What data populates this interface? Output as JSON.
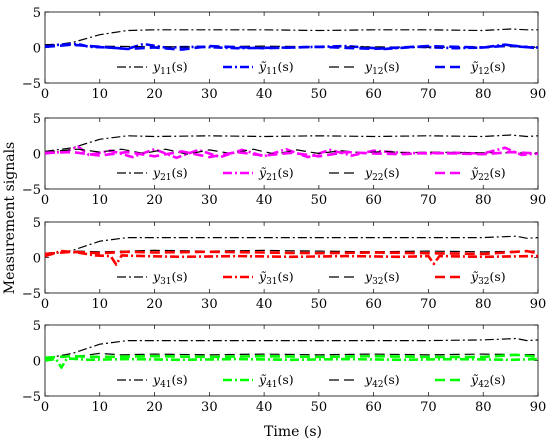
{
  "xlabel": "Time (s)",
  "ylabel": "Measurement signals",
  "chart_data": [
    {
      "type": "line",
      "xlim": [
        0,
        90
      ],
      "ylim": [
        -5,
        5
      ],
      "xticks": [
        "0",
        "10",
        "20",
        "30",
        "40",
        "50",
        "60",
        "70",
        "80",
        "90"
      ],
      "yticks": [
        "5",
        "0",
        "−5"
      ],
      "legend_position": "bottom",
      "series": [
        {
          "name": "y11(s)",
          "label_base": "y",
          "label_sub": "11",
          "label_suffix": "(s)",
          "tilde": false,
          "color": "#000000",
          "style": "dashdot",
          "width": 1.2,
          "x": [
            0,
            5,
            10,
            15,
            20,
            30,
            40,
            50,
            60,
            70,
            80,
            85,
            88,
            90
          ],
          "y": [
            0.2,
            0.7,
            1.8,
            2.4,
            2.5,
            2.5,
            2.5,
            2.4,
            2.5,
            2.5,
            2.4,
            2.6,
            2.5,
            2.5
          ]
        },
        {
          "name": "ỹ11(s)",
          "label_base": "y",
          "label_sub": "11",
          "label_suffix": "(s)",
          "tilde": true,
          "color": "#0000ff",
          "style": "dashdot",
          "width": 2.6,
          "x": [
            0,
            3,
            6,
            8,
            12,
            15,
            18,
            22,
            28,
            35,
            45,
            55,
            62,
            68,
            75,
            80,
            84,
            87,
            90
          ],
          "y": [
            0.3,
            0.4,
            0.5,
            0.1,
            0.0,
            -0.2,
            0.5,
            0.0,
            0.1,
            -0.1,
            0.0,
            0.2,
            -0.2,
            0.1,
            -0.1,
            0.0,
            0.4,
            0.1,
            0.0
          ]
        },
        {
          "name": "y12(s)",
          "label_base": "y",
          "label_sub": "12",
          "label_suffix": "(s)",
          "tilde": false,
          "color": "#000000",
          "style": "dashed",
          "width": 1.2,
          "x": [
            0,
            5,
            10,
            20,
            30,
            40,
            50,
            60,
            70,
            80,
            90
          ],
          "y": [
            0.4,
            0.3,
            0.2,
            0.1,
            0.1,
            0.2,
            0.1,
            0.1,
            0.0,
            0.1,
            0.1
          ]
        },
        {
          "name": "ỹ12(s)",
          "label_base": "y",
          "label_sub": "12",
          "label_suffix": "(s)",
          "tilde": true,
          "color": "#0000ff",
          "style": "dashed",
          "width": 2.6,
          "x": [
            0,
            5,
            10,
            15,
            20,
            25,
            30,
            40,
            50,
            60,
            70,
            80,
            85,
            90
          ],
          "y": [
            0.1,
            0.4,
            0.1,
            -0.2,
            0.0,
            -0.3,
            0.2,
            -0.1,
            0.1,
            -0.2,
            0.2,
            0.0,
            0.3,
            -0.1
          ]
        }
      ]
    },
    {
      "type": "line",
      "xlim": [
        0,
        90
      ],
      "ylim": [
        -5,
        5
      ],
      "xticks": [
        "0",
        "10",
        "20",
        "30",
        "40",
        "50",
        "60",
        "70",
        "80",
        "90"
      ],
      "yticks": [
        "5",
        "0",
        "−5"
      ],
      "legend_position": "bottom",
      "series": [
        {
          "name": "y21(s)",
          "label_base": "y",
          "label_sub": "21",
          "label_suffix": "(s)",
          "tilde": false,
          "color": "#000000",
          "style": "dashdot",
          "width": 1.2,
          "x": [
            0,
            5,
            10,
            15,
            20,
            30,
            40,
            50,
            60,
            70,
            80,
            85,
            88,
            90
          ],
          "y": [
            0.3,
            0.8,
            2.0,
            2.5,
            2.4,
            2.5,
            2.4,
            2.5,
            2.4,
            2.5,
            2.4,
            2.6,
            2.4,
            2.5
          ]
        },
        {
          "name": "ỹ21(s)",
          "label_base": "y",
          "label_sub": "21",
          "label_suffix": "(s)",
          "tilde": true,
          "color": "#ff00ff",
          "style": "dashdot",
          "width": 2.6,
          "x": [
            0,
            4,
            6,
            8,
            12,
            16,
            20,
            24,
            28,
            32,
            36,
            40,
            44,
            48,
            52,
            56,
            60,
            65,
            70,
            75,
            80,
            84,
            87,
            90
          ],
          "y": [
            0.0,
            0.3,
            1.0,
            -0.2,
            0.4,
            -0.5,
            0.6,
            -0.6,
            0.5,
            -0.5,
            0.5,
            -0.4,
            0.6,
            -0.5,
            0.5,
            -0.3,
            0.4,
            0.1,
            0.0,
            0.1,
            0.0,
            0.8,
            -0.2,
            0.0
          ]
        },
        {
          "name": "y22(s)",
          "label_base": "y",
          "label_sub": "22",
          "label_suffix": "(s)",
          "tilde": false,
          "color": "#000000",
          "style": "dashed",
          "width": 1.2,
          "x": [
            0,
            6,
            10,
            14,
            18,
            22,
            26,
            30,
            34,
            38,
            42,
            46,
            50,
            54,
            58,
            62,
            66,
            70,
            80,
            90
          ],
          "y": [
            0.2,
            0.6,
            0.2,
            0.6,
            0.0,
            0.6,
            -0.1,
            0.5,
            0.0,
            0.6,
            -0.1,
            0.5,
            0.0,
            0.4,
            0.1,
            0.3,
            0.1,
            0.2,
            0.1,
            0.1
          ]
        },
        {
          "name": "ỹ22(s)",
          "label_base": "y",
          "label_sub": "22",
          "label_suffix": "(s)",
          "tilde": true,
          "color": "#ff00ff",
          "style": "dashed",
          "width": 2.6,
          "x": [
            0,
            5,
            10,
            15,
            20,
            25,
            30,
            35,
            40,
            45,
            50,
            55,
            60,
            65,
            70,
            75,
            80,
            85,
            90
          ],
          "y": [
            0.1,
            0.2,
            -0.3,
            0.2,
            -0.4,
            0.3,
            -0.5,
            0.2,
            -0.3,
            0.1,
            -0.4,
            0.2,
            0.0,
            -0.1,
            0.1,
            0.0,
            -0.1,
            0.2,
            0.0
          ]
        }
      ]
    },
    {
      "type": "line",
      "xlim": [
        0,
        90
      ],
      "ylim": [
        -5,
        5
      ],
      "xticks": [
        "0",
        "10",
        "20",
        "30",
        "40",
        "50",
        "60",
        "70",
        "80",
        "90"
      ],
      "yticks": [
        "5",
        "0",
        "−5"
      ],
      "legend_position": "bottom",
      "series": [
        {
          "name": "y31(s)",
          "label_base": "y",
          "label_sub": "31",
          "label_suffix": "(s)",
          "tilde": false,
          "color": "#000000",
          "style": "dashdot",
          "width": 1.2,
          "x": [
            0,
            5,
            10,
            15,
            20,
            30,
            40,
            50,
            60,
            70,
            80,
            86,
            88,
            90
          ],
          "y": [
            0.3,
            1.0,
            2.3,
            2.8,
            2.8,
            2.8,
            2.8,
            2.8,
            2.8,
            2.8,
            2.8,
            3.0,
            2.7,
            2.8
          ]
        },
        {
          "name": "ỹ31(s)",
          "label_base": "y",
          "label_sub": "31",
          "label_suffix": "(s)",
          "tilde": true,
          "color": "#ff0000",
          "style": "dashdot",
          "width": 2.6,
          "x": [
            0,
            3,
            6,
            9,
            12,
            13,
            14,
            18,
            25,
            35,
            45,
            55,
            65,
            70,
            71,
            72,
            80,
            90
          ],
          "y": [
            0.2,
            0.9,
            0.7,
            0.3,
            0.2,
            -1.0,
            0.3,
            0.2,
            0.1,
            0.2,
            0.1,
            0.2,
            0.1,
            0.2,
            -0.9,
            0.2,
            0.1,
            0.2
          ]
        },
        {
          "name": "y32(s)",
          "label_base": "y",
          "label_sub": "32",
          "label_suffix": "(s)",
          "tilde": false,
          "color": "#000000",
          "style": "dashed",
          "width": 1.2,
          "x": [
            0,
            6,
            10,
            20,
            30,
            40,
            50,
            60,
            70,
            80,
            90
          ],
          "y": [
            0.6,
            0.9,
            0.8,
            1.0,
            0.9,
            1.0,
            0.9,
            0.8,
            0.9,
            0.8,
            0.9
          ]
        },
        {
          "name": "ỹ32(s)",
          "label_base": "y",
          "label_sub": "32",
          "label_suffix": "(s)",
          "tilde": true,
          "color": "#ff0000",
          "style": "dashed",
          "width": 2.6,
          "x": [
            0,
            5,
            10,
            15,
            20,
            30,
            40,
            50,
            60,
            70,
            80,
            88,
            90
          ],
          "y": [
            0.5,
            0.8,
            0.6,
            0.8,
            0.7,
            0.8,
            0.7,
            0.6,
            0.7,
            0.6,
            0.5,
            0.9,
            0.6
          ]
        }
      ]
    },
    {
      "type": "line",
      "xlim": [
        0,
        90
      ],
      "ylim": [
        -5,
        5
      ],
      "xticks": [
        "0",
        "10",
        "20",
        "30",
        "40",
        "50",
        "60",
        "70",
        "80",
        "90"
      ],
      "yticks": [
        "5",
        "0",
        "−5"
      ],
      "legend_position": "bottom",
      "series": [
        {
          "name": "y41(s)",
          "label_base": "y",
          "label_sub": "41",
          "label_suffix": "(s)",
          "tilde": false,
          "color": "#000000",
          "style": "dashdot",
          "width": 1.2,
          "x": [
            0,
            5,
            10,
            15,
            20,
            30,
            40,
            50,
            60,
            70,
            80,
            86,
            88,
            90
          ],
          "y": [
            0.3,
            1.0,
            2.3,
            2.8,
            2.8,
            2.8,
            2.8,
            2.8,
            2.8,
            2.8,
            2.9,
            3.1,
            2.8,
            2.9
          ]
        },
        {
          "name": "ỹ41(s)",
          "label_base": "y",
          "label_sub": "41",
          "label_suffix": "(s)",
          "tilde": true,
          "color": "#00ff00",
          "style": "dashdot",
          "width": 2.6,
          "x": [
            0,
            2,
            3,
            4,
            8,
            15,
            25,
            35,
            45,
            55,
            65,
            75,
            85,
            90
          ],
          "y": [
            0.0,
            0.2,
            -1.0,
            0.3,
            0.1,
            0.2,
            0.1,
            0.2,
            0.1,
            0.2,
            0.1,
            0.2,
            0.1,
            0.2
          ]
        },
        {
          "name": "y42(s)",
          "label_base": "y",
          "label_sub": "42",
          "label_suffix": "(s)",
          "tilde": false,
          "color": "#000000",
          "style": "dashed",
          "width": 1.2,
          "x": [
            0,
            6,
            10,
            14,
            20,
            30,
            40,
            50,
            60,
            70,
            80,
            90
          ],
          "y": [
            0.3,
            0.6,
            1.0,
            0.8,
            0.9,
            0.8,
            0.9,
            0.8,
            0.9,
            0.8,
            0.9,
            0.8
          ]
        },
        {
          "name": "ỹ42(s)",
          "label_base": "y",
          "label_sub": "42",
          "label_suffix": "(s)",
          "tilde": true,
          "color": "#00ff00",
          "style": "dashed",
          "width": 2.6,
          "x": [
            0,
            5,
            10,
            20,
            30,
            40,
            50,
            60,
            70,
            80,
            86,
            90
          ],
          "y": [
            0.4,
            0.6,
            0.5,
            0.6,
            0.5,
            0.6,
            0.5,
            0.6,
            0.5,
            0.5,
            0.8,
            0.5
          ]
        }
      ]
    }
  ]
}
